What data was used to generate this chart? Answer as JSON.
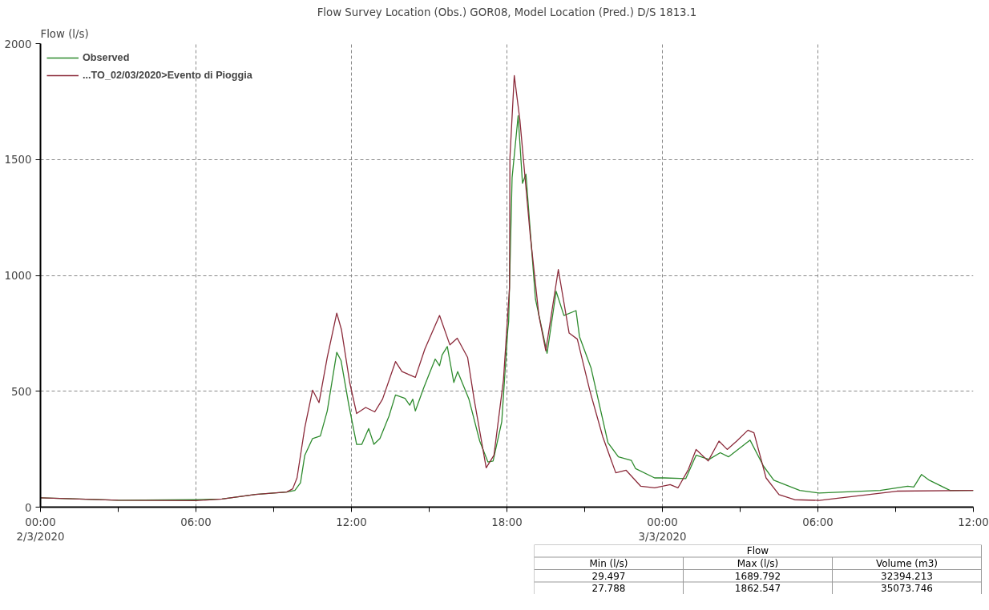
{
  "chart_data": {
    "type": "line",
    "title": "Flow Survey Location (Obs.) GOR08, Model Location (Pred.) D/S 1813.1",
    "ylabel": "Flow (l/s)",
    "xlim": [
      "2020-03-02T00:00",
      "2020-03-03T12:00"
    ],
    "ylim": [
      0,
      2000
    ],
    "xticks": [
      {
        "value": "2020-03-02T00:00",
        "label": "00:00\n2/3/2020"
      },
      {
        "value": "2020-03-02T03:00",
        "label": null
      },
      {
        "value": "2020-03-02T06:00",
        "label": "06:00"
      },
      {
        "value": "2020-03-02T09:00",
        "label": null
      },
      {
        "value": "2020-03-02T12:00",
        "label": "12:00"
      },
      {
        "value": "2020-03-02T15:00",
        "label": null
      },
      {
        "value": "2020-03-02T18:00",
        "label": "18:00"
      },
      {
        "value": "2020-03-02T21:00",
        "label": null
      },
      {
        "value": "2020-03-03T00:00",
        "label": "00:00\n3/3/2020"
      },
      {
        "value": "2020-03-03T03:00",
        "label": null
      },
      {
        "value": "2020-03-03T06:00",
        "label": "06:00"
      },
      {
        "value": "2020-03-03T09:00",
        "label": null
      },
      {
        "value": "2020-03-03T12:00",
        "label": "12:00"
      }
    ],
    "yticks": [
      0,
      500,
      1000,
      1500,
      2000
    ],
    "grid": true,
    "legend": "top left",
    "line_style": "solid",
    "series": [
      {
        "name": "Observed",
        "color": "#2e8b2e",
        "x": [
          "2020-03-02T00:00",
          "2020-03-02T03:00",
          "2020-03-02T06:00",
          "2020-03-02T07:00",
          "2020-03-02T08:18",
          "2020-03-02T09:30",
          "2020-03-02T09:49",
          "2020-03-02T10:02",
          "2020-03-02T10:12",
          "2020-03-02T10:30",
          "2020-03-02T10:48",
          "2020-03-02T11:04",
          "2020-03-02T11:26",
          "2020-03-02T11:36",
          "2020-03-02T11:54",
          "2020-03-02T12:12",
          "2020-03-02T12:24",
          "2020-03-02T12:40",
          "2020-03-02T12:52",
          "2020-03-02T13:06",
          "2020-03-02T13:27",
          "2020-03-02T13:42",
          "2020-03-02T14:04",
          "2020-03-02T14:15",
          "2020-03-02T14:22",
          "2020-03-02T14:28",
          "2020-03-02T14:47",
          "2020-03-02T15:00",
          "2020-03-02T15:14",
          "2020-03-02T15:24",
          "2020-03-02T15:30",
          "2020-03-02T15:42",
          "2020-03-02T15:57",
          "2020-03-02T16:06",
          "2020-03-02T16:32",
          "2020-03-02T16:57",
          "2020-03-02T17:16",
          "2020-03-02T17:28",
          "2020-03-02T17:48",
          "2020-03-02T18:02",
          "2020-03-02T18:04",
          "2020-03-02T18:12",
          "2020-03-02T18:26",
          "2020-03-02T18:36",
          "2020-03-02T18:44",
          "2020-03-02T19:06",
          "2020-03-02T19:33",
          "2020-03-02T19:54",
          "2020-03-02T20:12",
          "2020-03-02T20:40",
          "2020-03-02T20:48",
          "2020-03-02T21:15",
          "2020-03-02T21:54",
          "2020-03-02T22:18",
          "2020-03-02T22:48",
          "2020-03-02T22:58",
          "2020-03-02T23:42",
          "2020-03-03T00:04",
          "2020-03-03T00:54",
          "2020-03-03T01:18",
          "2020-03-03T01:48",
          "2020-03-03T02:14",
          "2020-03-03T02:33",
          "2020-03-03T03:23",
          "2020-03-03T03:54",
          "2020-03-03T04:18",
          "2020-03-03T05:18",
          "2020-03-03T06:03",
          "2020-03-03T08:24",
          "2020-03-03T09:28",
          "2020-03-03T09:42",
          "2020-03-03T10:00",
          "2020-03-03T10:18",
          "2020-03-03T11:06",
          "2020-03-03T12:00"
        ],
        "values": [
          40,
          30,
          32,
          35,
          55,
          65,
          72,
          105,
          224,
          296,
          307,
          415,
          668,
          632,
          440,
          271,
          271,
          339,
          271,
          296,
          393,
          484,
          469,
          440,
          466,
          415,
          513,
          574,
          639,
          610,
          657,
          693,
          538,
          585,
          466,
          285,
          195,
          199,
          368,
          765,
          801,
          1422,
          1689,
          1397,
          1437,
          899,
          664,
          931,
          827,
          848,
          736,
          599,
          278,
          217,
          202,
          166,
          126,
          126,
          123,
          224,
          206,
          235,
          217,
          289,
          177,
          116,
          72,
          61,
          72,
          90,
          87,
          141,
          116,
          72,
          72
        ]
      },
      {
        "name": "...TO_02/03/2020>Evento di Pioggia",
        "color": "#8b2a3a",
        "x": [
          "2020-03-02T00:00",
          "2020-03-02T03:00",
          "2020-03-02T06:00",
          "2020-03-02T07:00",
          "2020-03-02T08:18",
          "2020-03-02T09:30",
          "2020-03-02T09:44",
          "2020-03-02T09:54",
          "2020-03-02T10:12",
          "2020-03-02T10:30",
          "2020-03-02T10:45",
          "2020-03-02T11:04",
          "2020-03-02T11:26",
          "2020-03-02T11:37",
          "2020-03-02T11:56",
          "2020-03-02T12:12",
          "2020-03-02T12:33",
          "2020-03-02T12:54",
          "2020-03-02T13:12",
          "2020-03-02T13:42",
          "2020-03-02T13:57",
          "2020-03-02T14:28",
          "2020-03-02T14:50",
          "2020-03-02T15:24",
          "2020-03-02T15:48",
          "2020-03-02T16:05",
          "2020-03-02T16:29",
          "2020-03-02T16:44",
          "2020-03-02T17:12",
          "2020-03-02T17:30",
          "2020-03-02T17:52",
          "2020-03-02T18:06",
          "2020-03-02T18:07",
          "2020-03-02T18:17",
          "2020-03-02T18:30",
          "2020-03-02T18:54",
          "2020-03-02T19:14",
          "2020-03-02T19:30",
          "2020-03-02T19:59",
          "2020-03-02T20:24",
          "2020-03-02T20:43",
          "2020-03-02T21:12",
          "2020-03-02T21:42",
          "2020-03-02T22:12",
          "2020-03-02T22:36",
          "2020-03-02T23:10",
          "2020-03-02T23:42",
          "2020-03-03T00:18",
          "2020-03-03T00:36",
          "2020-03-03T01:00",
          "2020-03-03T01:18",
          "2020-03-03T01:46",
          "2020-03-03T02:11",
          "2020-03-03T02:30",
          "2020-03-03T02:52",
          "2020-03-03T03:18",
          "2020-03-03T03:32",
          "2020-03-03T04:00",
          "2020-03-03T04:30",
          "2020-03-03T05:06",
          "2020-03-03T06:03",
          "2020-03-03T09:03",
          "2020-03-03T12:00"
        ],
        "values": [
          40,
          30,
          28,
          35,
          55,
          65,
          79,
          126,
          343,
          505,
          451,
          646,
          837,
          765,
          538,
          404,
          430,
          411,
          466,
          628,
          585,
          560,
          682,
          827,
          700,
          729,
          646,
          466,
          170,
          224,
          549,
          946,
          1509,
          1862,
          1671,
          1173,
          827,
          675,
          1025,
          751,
          725,
          502,
          303,
          148,
          159,
          90,
          83,
          97,
          83,
          162,
          249,
          199,
          285,
          249,
          285,
          332,
          321,
          126,
          54,
          32,
          29,
          69,
          72
        ]
      }
    ],
    "annotations": [
      "Flow",
      "Min (l/s)",
      "Max (l/s)",
      "Volume (m3)",
      "29.497",
      "1689.792",
      "32394.213",
      "27.788",
      "1862.547",
      "35073.746"
    ]
  }
}
